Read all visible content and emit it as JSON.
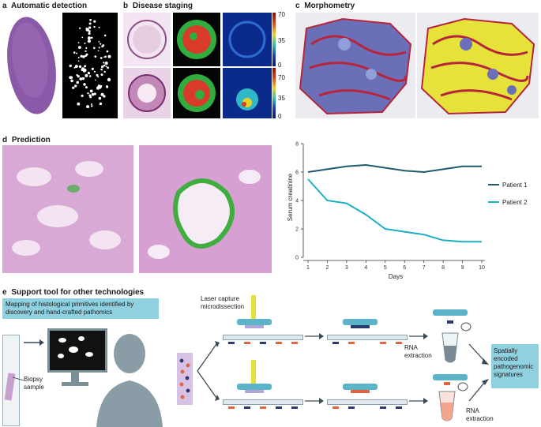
{
  "panels": {
    "a": {
      "letter": "a",
      "title": "Automatic detection"
    },
    "b": {
      "letter": "b",
      "title": "Disease staging",
      "scale_top": [
        "70",
        "35",
        "0"
      ],
      "scale_bottom": [
        "70",
        "35",
        "0"
      ]
    },
    "c": {
      "letter": "c",
      "title": "Morphometry"
    },
    "d": {
      "letter": "d",
      "title": "Prediction"
    },
    "e": {
      "letter": "e",
      "title": "Support tool for other technologies",
      "box_text": "Mapping of histological primitives identified by discovery and hand-crafted pathomics",
      "biopsy_label": "Biopsy sample",
      "laser_label": "Laser capture microdissection",
      "rna_label_top": "RNA extraction",
      "rna_label_bottom": "RNA extraction",
      "result_text": "Spatially encoded pathogenomic signatures"
    }
  },
  "colors": {
    "patient1": "#1f5a6e",
    "patient2": "#1bb0c4",
    "label_box": "#8fd1e0",
    "he_pink": "#c993c9",
    "mask_green": "#3fae3f",
    "mask_yellow": "#e6e23a",
    "tissue_purple": "#8a5aa8",
    "tri_blue": "#6b6fb8",
    "tri_red": "#b5263c"
  },
  "chart_data": {
    "type": "line",
    "x": [
      1,
      2,
      3,
      4,
      5,
      6,
      7,
      8,
      9,
      10
    ],
    "series": [
      {
        "name": "Patient 1",
        "values": [
          6.0,
          6.2,
          6.4,
          6.5,
          6.3,
          6.1,
          6.0,
          6.2,
          6.4,
          6.4
        ]
      },
      {
        "name": "Patient 2",
        "values": [
          5.5,
          4.0,
          3.8,
          3.0,
          2.0,
          1.8,
          1.6,
          1.2,
          1.1,
          1.1
        ]
      }
    ],
    "xlabel": "Days",
    "ylabel": "Serum creatinine",
    "xticks": [
      "1",
      "2",
      "3",
      "4",
      "5",
      "6",
      "7",
      "8",
      "9",
      "10"
    ],
    "yticks": [
      "0",
      "2",
      "4",
      "6",
      "8"
    ],
    "xlim": [
      1,
      10
    ],
    "ylim": [
      0,
      8
    ],
    "legend": "right",
    "grid": false
  }
}
